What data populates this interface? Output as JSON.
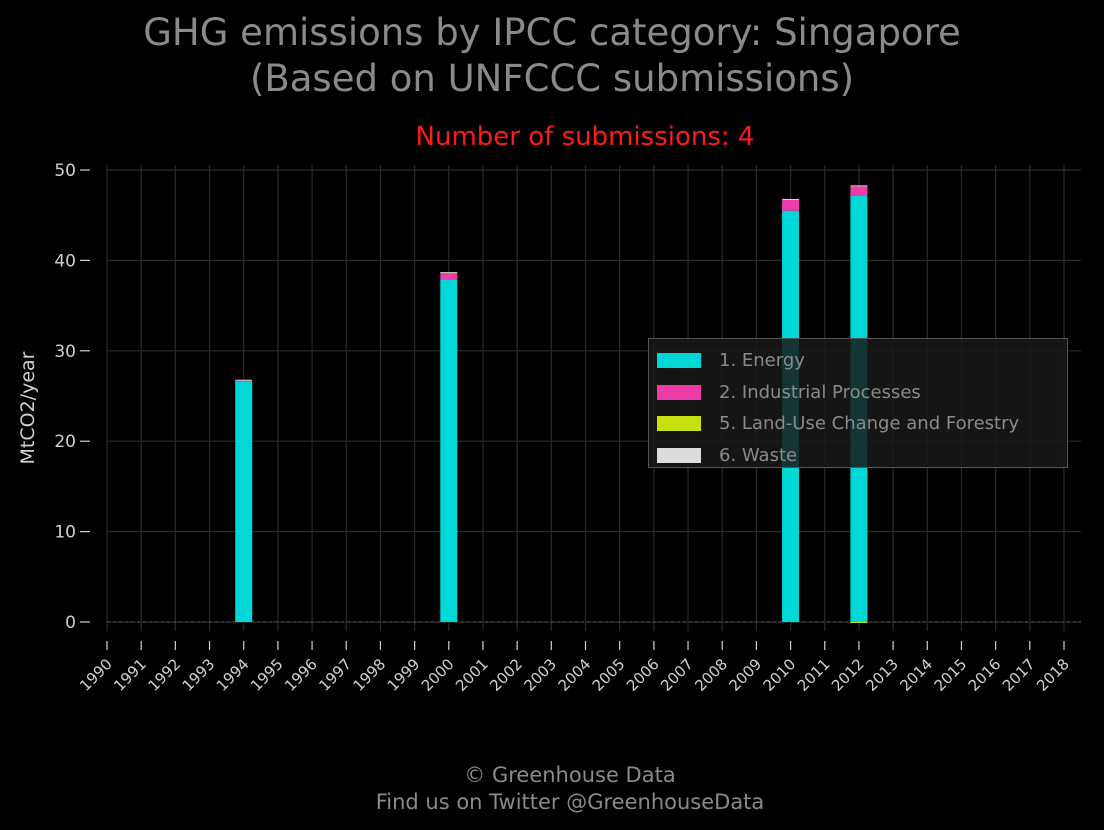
{
  "title_line1": "GHG emissions by IPCC category: Singapore",
  "title_line2": "(Based on UNFCCC submissions)",
  "subtitle": "Number of submissions: 4",
  "credit_line1": "© Greenhouse Data",
  "credit_line2": "Find us on Twitter @GreenhouseData",
  "colors": {
    "background": "#000000",
    "grid": "#2a2a2a",
    "axis_text": "#d0d0d0",
    "title_text": "#8a8a8a",
    "subtitle_text": "#ff1a1a"
  },
  "chart_data": {
    "type": "bar",
    "stacked": true,
    "title": "GHG emissions by IPCC category: Singapore (Based on UNFCCC submissions)",
    "subtitle": "Number of submissions: 4",
    "xlabel": "",
    "ylabel": "MtCO2/year",
    "ylim": [
      -1,
      51
    ],
    "yticks": [
      0,
      10,
      20,
      30,
      40,
      50
    ],
    "grid": true,
    "legend_position": "right",
    "categories": [
      "1990",
      "1991",
      "1992",
      "1993",
      "1994",
      "1995",
      "1996",
      "1997",
      "1998",
      "1999",
      "2000",
      "2001",
      "2002",
      "2003",
      "2004",
      "2005",
      "2006",
      "2007",
      "2008",
      "2009",
      "2010",
      "2011",
      "2012",
      "2013",
      "2014",
      "2015",
      "2016",
      "2017",
      "2018"
    ],
    "series": [
      {
        "name": "1. Energy",
        "color": "#00d8d8",
        "values": [
          0,
          0,
          0,
          0,
          26.6,
          0,
          0,
          0,
          0,
          0,
          37.9,
          0,
          0,
          0,
          0,
          0,
          0,
          0,
          0,
          0,
          45.5,
          0,
          47.2,
          0,
          0,
          0,
          0,
          0,
          0
        ]
      },
      {
        "name": "2. Industrial Processes",
        "color": "#f03ca8",
        "values": [
          0,
          0,
          0,
          0,
          0.1,
          0,
          0,
          0,
          0,
          0,
          0.7,
          0,
          0,
          0,
          0,
          0,
          0,
          0,
          0,
          0,
          1.2,
          0,
          1.0,
          0,
          0,
          0,
          0,
          0,
          0
        ]
      },
      {
        "name": "5. Land-Use Change and Forestry",
        "color": "#c8e010",
        "values": [
          0,
          0,
          0,
          0,
          0,
          0,
          0,
          0,
          0,
          0,
          0,
          0,
          0,
          0,
          0,
          0,
          0,
          0,
          0,
          0,
          0,
          0,
          -0.1,
          0,
          0,
          0,
          0,
          0,
          0
        ]
      },
      {
        "name": "6. Waste",
        "color": "#dcdcdc",
        "values": [
          0,
          0,
          0,
          0,
          0.1,
          0,
          0,
          0,
          0,
          0,
          0.1,
          0,
          0,
          0,
          0,
          0,
          0,
          0,
          0,
          0,
          0.1,
          0,
          0.1,
          0,
          0,
          0,
          0,
          0,
          0
        ]
      }
    ]
  }
}
